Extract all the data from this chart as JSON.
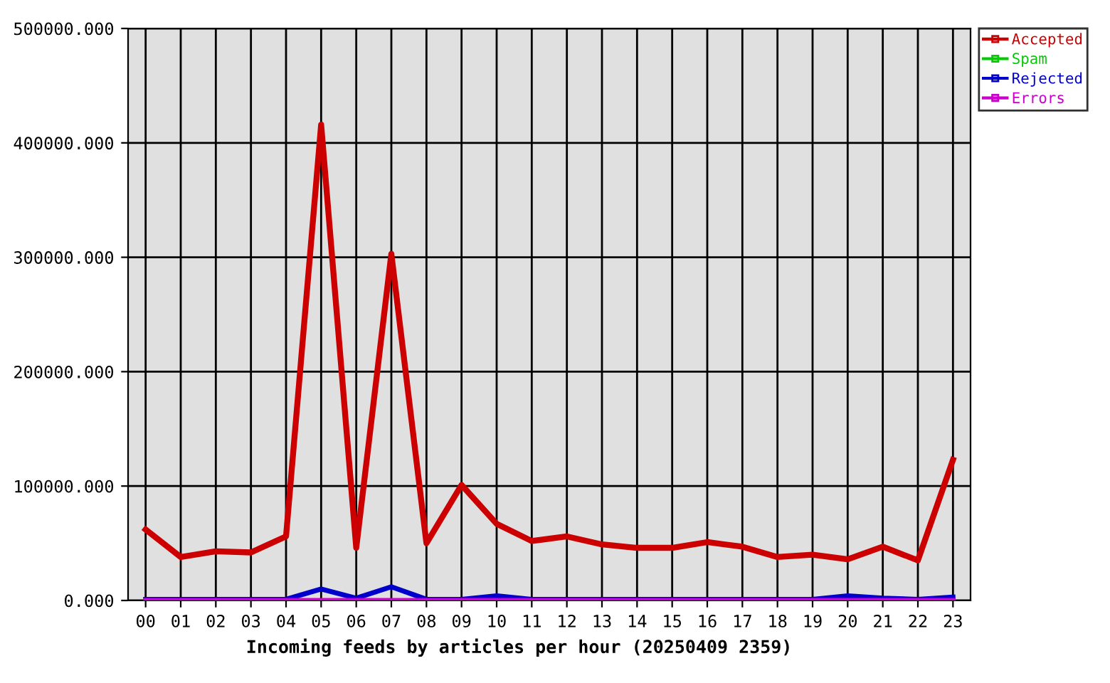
{
  "chart_data": {
    "type": "line",
    "xlabel": "Incoming feeds by articles per hour (20250409 2359)",
    "categories": [
      "00",
      "01",
      "02",
      "03",
      "04",
      "05",
      "06",
      "07",
      "08",
      "09",
      "10",
      "11",
      "12",
      "13",
      "14",
      "15",
      "16",
      "17",
      "18",
      "19",
      "20",
      "21",
      "22",
      "23"
    ],
    "series": [
      {
        "name": "Accepted",
        "color": "#cc0000",
        "values": [
          62000,
          38000,
          43000,
          42000,
          56000,
          416000,
          46000,
          303000,
          50000,
          101000,
          67000,
          52000,
          56000,
          49000,
          46000,
          46000,
          51000,
          47000,
          38000,
          40000,
          36000,
          47000,
          35000,
          123000
        ]
      },
      {
        "name": "Spam",
        "color": "#00cc00",
        "values": [
          null,
          null,
          null,
          null,
          null,
          null,
          null,
          null,
          null,
          null,
          null,
          null,
          null,
          null,
          null,
          null,
          null,
          null,
          null,
          null,
          null,
          null,
          null,
          null
        ]
      },
      {
        "name": "Rejected",
        "color": "#0000cc",
        "values": [
          1000,
          1000,
          1000,
          1000,
          1000,
          10000,
          2000,
          12000,
          1000,
          1000,
          4000,
          1000,
          1000,
          1000,
          1000,
          1000,
          1000,
          1000,
          1000,
          1000,
          4000,
          2000,
          1000,
          3000
        ]
      },
      {
        "name": "Errors",
        "color": "#cc00cc",
        "values": [
          0,
          0,
          0,
          0,
          0,
          0,
          0,
          0,
          0,
          0,
          0,
          0,
          0,
          0,
          0,
          0,
          0,
          0,
          0,
          0,
          0,
          0,
          0,
          0
        ]
      }
    ],
    "ylim": [
      0,
      500000
    ],
    "yticks": [
      {
        "value": 0,
        "label": "0.000"
      },
      {
        "value": 100000,
        "label": "100000.000"
      },
      {
        "value": 200000,
        "label": "200000.000"
      },
      {
        "value": 300000,
        "label": "300000.000"
      },
      {
        "value": 400000,
        "label": "400000.000"
      },
      {
        "value": 500000,
        "label": "500000.000"
      }
    ],
    "grid": true,
    "legend": "top right"
  }
}
